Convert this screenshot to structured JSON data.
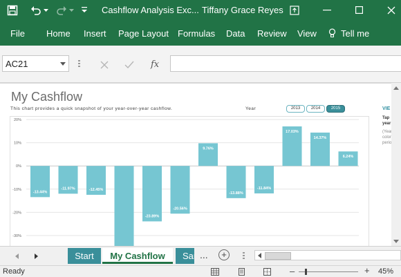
{
  "window": {
    "title": "Cashflow Analysis Exc...",
    "user": "Tiffany Grace Reyes"
  },
  "ribbon": {
    "tabs": [
      "File",
      "Home",
      "Insert",
      "Page Layout",
      "Formulas",
      "Data",
      "Review",
      "View"
    ],
    "tell_me": "Tell me"
  },
  "formula_bar": {
    "name_box": "AC21",
    "fx_label": "fx",
    "value": ""
  },
  "report": {
    "title": "My Cashflow",
    "subtitle": "This chart provides a quick snapshot of your year-over-year cashflow.",
    "year_label": "Year",
    "year_buttons": [
      "2013",
      "2014",
      "2015"
    ],
    "selected_year": "2015",
    "side_link": "VIE",
    "side_text_1": "Tap",
    "side_text_2": "year",
    "side_text_3": "(Year",
    "side_text_4": "colon",
    "side_text_5": "perio"
  },
  "chart_data": {
    "type": "bar",
    "yticks": [
      "20%",
      "10%",
      "0%",
      "-10%",
      "-20%",
      "-30%"
    ],
    "ylim": [
      -36,
      20
    ],
    "values": [
      -13.44,
      -11.97,
      -12.45,
      -36,
      -23.89,
      -20.56,
      9.76,
      -13.88,
      -11.84,
      17.03,
      14.37,
      6.24
    ],
    "labels": [
      "-13.44%",
      "-11.97%",
      "-12.45%",
      "",
      "-23.89%",
      "-20.56%",
      "9.76%",
      "-13.88%",
      "-11.84%",
      "17.03%",
      "14.37%",
      "6.24%"
    ],
    "bar_color": "#76c6d2",
    "grid": true
  },
  "sheet_tabs": {
    "tabs": [
      "Start",
      "My Cashflow",
      "Sar"
    ],
    "active": "My Cashflow",
    "ellipsis": "...",
    "add": "+"
  },
  "status_bar": {
    "status": "Ready",
    "zoom": "45%",
    "zoom_minus": "–",
    "zoom_plus": "+"
  },
  "colors": {
    "excel_green": "#217346",
    "tab_teal": "#3a8f9a",
    "bar": "#76c6d2"
  }
}
